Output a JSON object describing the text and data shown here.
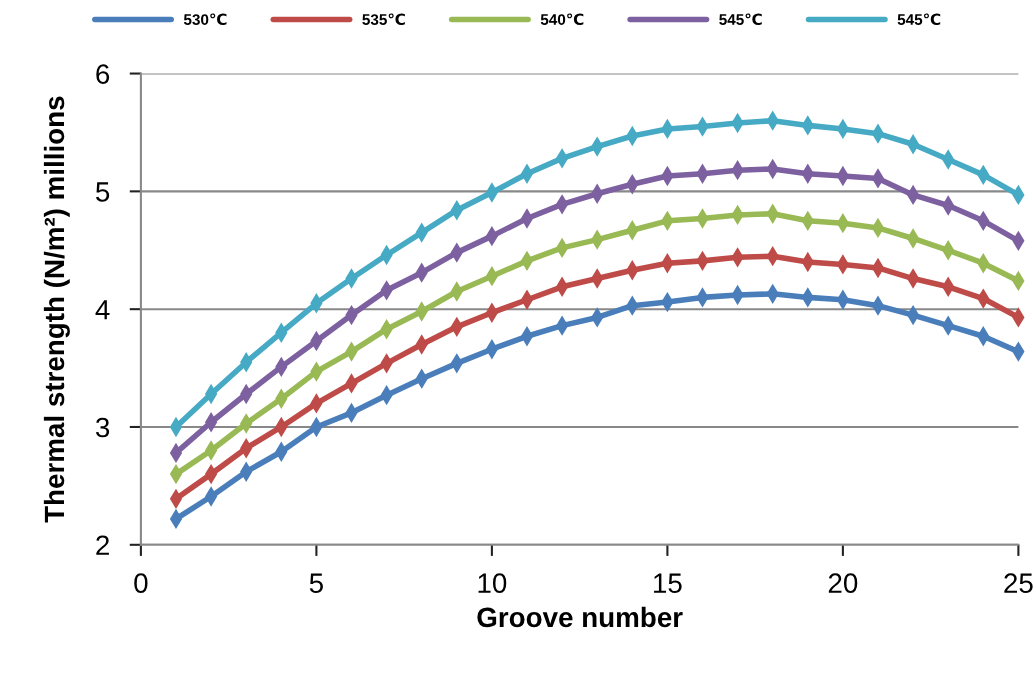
{
  "chart_data": {
    "type": "line",
    "xlabel": "Groove number",
    "ylabel": "Thermal strength (N/m²) millions",
    "x": [
      1,
      2,
      3,
      4,
      5,
      6,
      7,
      8,
      9,
      10,
      11,
      12,
      13,
      14,
      15,
      16,
      17,
      18,
      19,
      20,
      21,
      22,
      23,
      24,
      25
    ],
    "xlim": [
      0,
      25
    ],
    "xticks": [
      0,
      5,
      10,
      15,
      20,
      25
    ],
    "ylim": [
      2,
      6
    ],
    "yticks": [
      2,
      3,
      4,
      5,
      6
    ],
    "grid": "y",
    "legend": "top",
    "marker": "diamond",
    "line_style": "solid",
    "series": [
      {
        "name": "530℃",
        "color": "#4a7ebb",
        "values": [
          2.22,
          2.41,
          2.62,
          2.79,
          3.0,
          3.12,
          3.27,
          3.41,
          3.54,
          3.66,
          3.77,
          3.86,
          3.93,
          4.03,
          4.06,
          4.1,
          4.12,
          4.13,
          4.1,
          4.08,
          4.03,
          3.95,
          3.86,
          3.77,
          3.64
        ]
      },
      {
        "name": "535℃",
        "color": "#be4b48",
        "values": [
          2.39,
          2.6,
          2.82,
          3.0,
          3.2,
          3.37,
          3.54,
          3.7,
          3.85,
          3.97,
          4.08,
          4.19,
          4.26,
          4.33,
          4.39,
          4.41,
          4.44,
          4.45,
          4.4,
          4.38,
          4.35,
          4.26,
          4.19,
          4.09,
          3.93
        ]
      },
      {
        "name": "540℃",
        "color": "#98b954",
        "values": [
          2.6,
          2.8,
          3.03,
          3.24,
          3.47,
          3.64,
          3.83,
          3.98,
          4.15,
          4.28,
          4.41,
          4.52,
          4.59,
          4.67,
          4.75,
          4.77,
          4.8,
          4.81,
          4.75,
          4.73,
          4.69,
          4.6,
          4.5,
          4.39,
          4.24
        ]
      },
      {
        "name": "545℃",
        "color": "#7d60a0",
        "values": [
          2.78,
          3.04,
          3.28,
          3.51,
          3.73,
          3.95,
          4.16,
          4.31,
          4.48,
          4.62,
          4.77,
          4.89,
          4.98,
          5.06,
          5.13,
          5.15,
          5.18,
          5.19,
          5.15,
          5.13,
          5.11,
          4.97,
          4.88,
          4.75,
          4.58
        ]
      },
      {
        "name": "545℃",
        "color": "#46aac5",
        "values": [
          3.0,
          3.28,
          3.55,
          3.8,
          4.05,
          4.26,
          4.46,
          4.65,
          4.84,
          4.99,
          5.15,
          5.28,
          5.38,
          5.47,
          5.53,
          5.55,
          5.58,
          5.6,
          5.56,
          5.53,
          5.49,
          5.4,
          5.27,
          5.14,
          4.97
        ]
      }
    ]
  }
}
